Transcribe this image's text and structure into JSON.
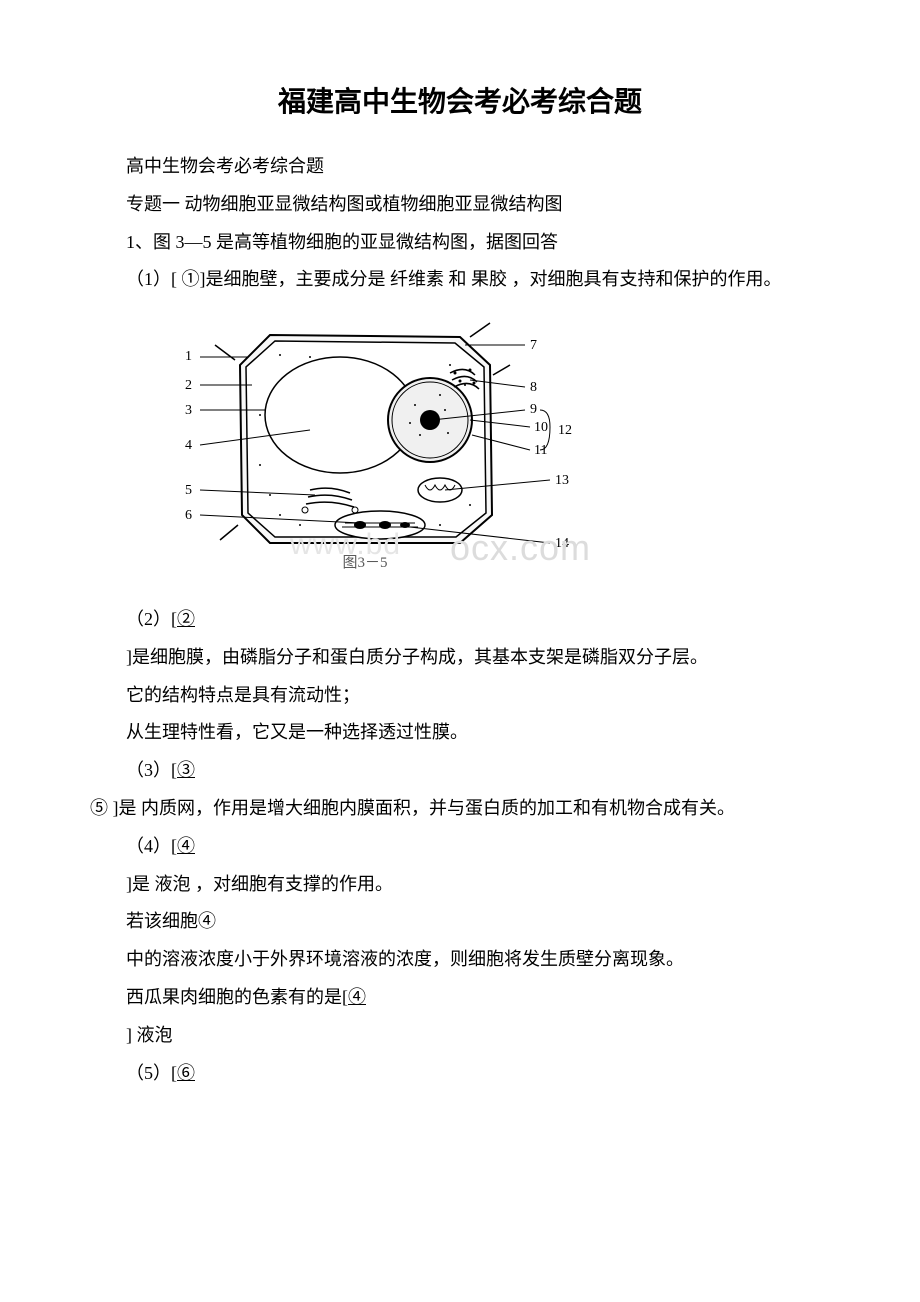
{
  "title": "福建高中生物会考必考综合题",
  "lines": {
    "l1": "高中生物会考必考综合题",
    "l2": "专题一 动物细胞亚显微结构图或植物细胞亚显微结构图",
    "l3": "1、图 3—5 是高等植物细胞的亚显微结构图，据图回答",
    "l4": "（1）[ ①]是细胞壁，主要成分是 纤维素 和 果胶 ，对细胞具有支持和保护的作用。",
    "l5": "（2）[②",
    "l6": "]是细胞膜，由磷脂分子和蛋白质分子构成，其基本支架是磷脂双分子层。",
    "l7": "它的结构特点是具有流动性；",
    "l8": "从生理特性看，它又是一种选择透过性膜。",
    "l9": "（3）[③",
    "l10": "⑤ ]是 内质网，作用是增大细胞内膜面积，并与蛋白质的加工和有机物合成有关。",
    "l11": "（4）[④",
    "l12": "]是 液泡 ，对细胞有支撑的作用。",
    "l13": "若该细胞④",
    "l14": "中的溶液浓度小于外界环境溶液的浓度，则细胞将发生质壁分离现象。",
    "l15": "西瓜果肉细胞的色素有的是[④",
    "l16": "] 液泡",
    "l17": "（5）[⑥"
  },
  "diagram": {
    "caption": "图3－5",
    "label_numbers": [
      "1",
      "2",
      "3",
      "4",
      "5",
      "6",
      "7",
      "8",
      "9",
      "10",
      "11",
      "12",
      "13",
      "14"
    ],
    "colors": {
      "stroke": "#000000",
      "fill_light": "#ffffff",
      "fill_dots": "#000000",
      "caption_color": "#5a5a5a"
    }
  },
  "watermark": {
    "text": "ocx.com",
    "prefix_faint": "www.bd",
    "color": "#dcdcdc"
  }
}
